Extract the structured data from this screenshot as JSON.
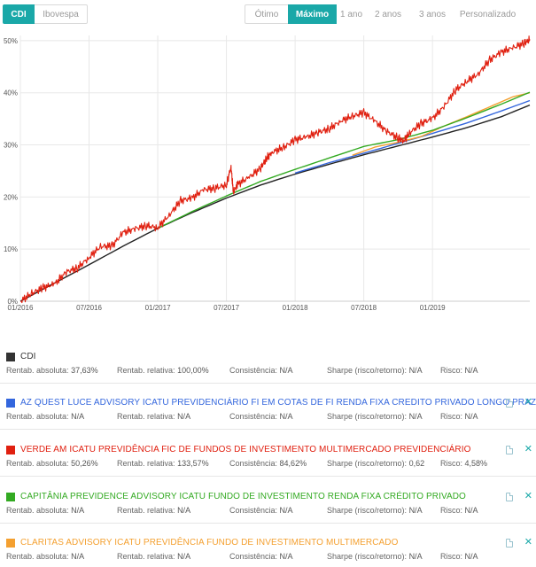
{
  "benchmark_toggle": {
    "active": "CDI",
    "other": "Ibovespa"
  },
  "periods": {
    "otimo": "Ótimo",
    "maximo": "Máximo",
    "p1": "1 ano",
    "p2": "2 anos",
    "p3": "3 anos",
    "perso": "Personalizado"
  },
  "chart_data": {
    "type": "line",
    "title": "",
    "xlabel": "",
    "ylabel": "",
    "x_ticks": [
      "01/2016",
      "07/2016",
      "01/2017",
      "07/2017",
      "01/2018",
      "07/2018",
      "01/2019"
    ],
    "y_ticks": [
      "0%",
      "10%",
      "20%",
      "30%",
      "40%",
      "50%"
    ],
    "ylim": [
      0,
      51
    ],
    "x_range_months": [
      0,
      44.5
    ],
    "series": [
      {
        "name": "CDI",
        "color": "#222222",
        "points": [
          [
            0,
            0
          ],
          [
            3,
            3.5
          ],
          [
            6,
            7.0
          ],
          [
            9,
            10.6
          ],
          [
            12,
            14.0
          ],
          [
            15,
            17.0
          ],
          [
            18,
            19.8
          ],
          [
            21,
            22.3
          ],
          [
            24,
            24.4
          ],
          [
            27,
            26.3
          ],
          [
            30,
            28.1
          ],
          [
            33,
            29.8
          ],
          [
            36,
            31.5
          ],
          [
            39,
            33.3
          ],
          [
            42,
            35.4
          ],
          [
            44.5,
            37.63
          ]
        ]
      },
      {
        "name": "AZ QUEST LUCE",
        "color": "#3366dd",
        "points": [
          [
            24,
            24.6
          ],
          [
            27,
            26.6
          ],
          [
            30,
            28.4
          ],
          [
            33,
            30.3
          ],
          [
            36,
            32.2
          ],
          [
            39,
            34.2
          ],
          [
            42,
            36.5
          ],
          [
            44.5,
            38.5
          ]
        ]
      },
      {
        "name": "VERDE AM",
        "color": "#e02010",
        "points": [
          [
            0,
            0
          ],
          [
            1,
            1.5
          ],
          [
            2,
            2.6
          ],
          [
            3,
            3.3
          ],
          [
            4,
            5.6
          ],
          [
            5,
            6.4
          ],
          [
            6,
            8.4
          ],
          [
            7,
            10.5
          ],
          [
            8,
            10.6
          ],
          [
            9,
            13.2
          ],
          [
            10,
            13.9
          ],
          [
            11,
            14.5
          ],
          [
            12,
            14.1
          ],
          [
            13,
            16.5
          ],
          [
            14,
            19.3
          ],
          [
            15,
            19.8
          ],
          [
            16,
            21.4
          ],
          [
            17,
            21.7
          ],
          [
            18,
            22.3
          ],
          [
            18.4,
            25.8
          ],
          [
            18.6,
            21.0
          ],
          [
            19,
            22.5
          ],
          [
            20,
            23.8
          ],
          [
            21,
            25.6
          ],
          [
            21.5,
            27.4
          ],
          [
            22,
            28.6
          ],
          [
            23,
            29.5
          ],
          [
            24,
            31.0
          ],
          [
            25,
            31.5
          ],
          [
            26,
            32.4
          ],
          [
            27,
            33.1
          ],
          [
            28,
            34.6
          ],
          [
            29,
            35.5
          ],
          [
            30,
            36.2
          ],
          [
            31,
            34.5
          ],
          [
            32,
            32.6
          ],
          [
            33,
            31.3
          ],
          [
            33.5,
            30.8
          ],
          [
            34,
            32.3
          ],
          [
            35,
            34.1
          ],
          [
            36,
            35.1
          ],
          [
            37,
            37.3
          ],
          [
            38,
            40.5
          ],
          [
            39,
            42.2
          ],
          [
            40,
            43.6
          ],
          [
            41,
            46.3
          ],
          [
            42,
            47.8
          ],
          [
            43,
            48.6
          ],
          [
            44,
            49.5
          ],
          [
            44.5,
            50.26
          ]
        ]
      },
      {
        "name": "CAPITÂNIA PREVIDENCE",
        "color": "#33aa22",
        "points": [
          [
            12,
            14.0
          ],
          [
            15,
            17.2
          ],
          [
            18,
            20.2
          ],
          [
            21,
            23.0
          ],
          [
            24,
            25.3
          ],
          [
            27,
            27.5
          ],
          [
            30,
            29.7
          ],
          [
            33,
            31.0
          ],
          [
            36,
            32.8
          ],
          [
            39,
            35.2
          ],
          [
            42,
            37.8
          ],
          [
            44.5,
            40.1
          ]
        ]
      },
      {
        "name": "CLARITAS ADVISORY",
        "color": "#f4a030",
        "points": [
          [
            29,
            28.0
          ],
          [
            31,
            29.6
          ],
          [
            33,
            30.5
          ],
          [
            35,
            31.6
          ],
          [
            37,
            33.6
          ],
          [
            39,
            35.4
          ],
          [
            41,
            37.3
          ],
          [
            43,
            39.2
          ],
          [
            44.5,
            40.0
          ]
        ]
      }
    ]
  },
  "funds": [
    {
      "name": "CDI",
      "color": "#333333",
      "m1_label": "Rentab. absoluta:",
      "m1_value": "37,63%",
      "m2_label": "Rentab. relativa:",
      "m2_value": "100,00%",
      "m3_label": "Consistência:",
      "m3_value": "N/A",
      "m4_label": "Sharpe (risco/retorno):",
      "m4_value": "N/A",
      "m5_label": "Risco:",
      "m5_value": "N/A"
    },
    {
      "name": "AZ QUEST LUCE ADVISORY ICATU PREVIDENCIÁRIO FI EM COTAS DE FI RENDA FIXA CREDITO PRIVADO LONGO PRAZO",
      "color": "#3366dd",
      "m1_label": "Rentab. absoluta:",
      "m1_value": "N/A",
      "m2_label": "Rentab. relativa:",
      "m2_value": "N/A",
      "m3_label": "Consistência:",
      "m3_value": "N/A",
      "m4_label": "Sharpe (risco/retorno):",
      "m4_value": "N/A",
      "m5_label": "Risco:",
      "m5_value": "N/A"
    },
    {
      "name": "VERDE AM ICATU PREVIDÊNCIA FIC DE FUNDOS DE INVESTIMENTO MULTIMERCADO PREVIDENCIÁRIO",
      "color": "#e02010",
      "m1_label": "Rentab. absoluta:",
      "m1_value": "50,26%",
      "m2_label": "Rentab. relativa:",
      "m2_value": "133,57%",
      "m3_label": "Consistência:",
      "m3_value": "84,62%",
      "m4_label": "Sharpe (risco/retorno):",
      "m4_value": "0,62",
      "m5_label": "Risco:",
      "m5_value": "4,58%"
    },
    {
      "name": "CAPITÂNIA PREVIDENCE ADVISORY ICATU FUNDO DE INVESTIMENTO RENDA FIXA CRÉDITO PRIVADO",
      "color": "#33aa22",
      "m1_label": "Rentab. absoluta:",
      "m1_value": "N/A",
      "m2_label": "Rentab. relativa:",
      "m2_value": "N/A",
      "m3_label": "Consistência:",
      "m3_value": "N/A",
      "m4_label": "Sharpe (risco/retorno):",
      "m4_value": "N/A",
      "m5_label": "Risco:",
      "m5_value": "N/A"
    },
    {
      "name": "CLARITAS ADVISORY ICATU PREVIDÊNCIA FUNDO DE INVESTIMENTO MULTIMERCADO",
      "color": "#f4a030",
      "m1_label": "Rentab. absoluta:",
      "m1_value": "N/A",
      "m2_label": "Rentab. relativa:",
      "m2_value": "N/A",
      "m3_label": "Consistência:",
      "m3_value": "N/A",
      "m4_label": "Sharpe (risco/retorno):",
      "m4_value": "N/A",
      "m5_label": "Risco:",
      "m5_value": "N/A"
    }
  ]
}
